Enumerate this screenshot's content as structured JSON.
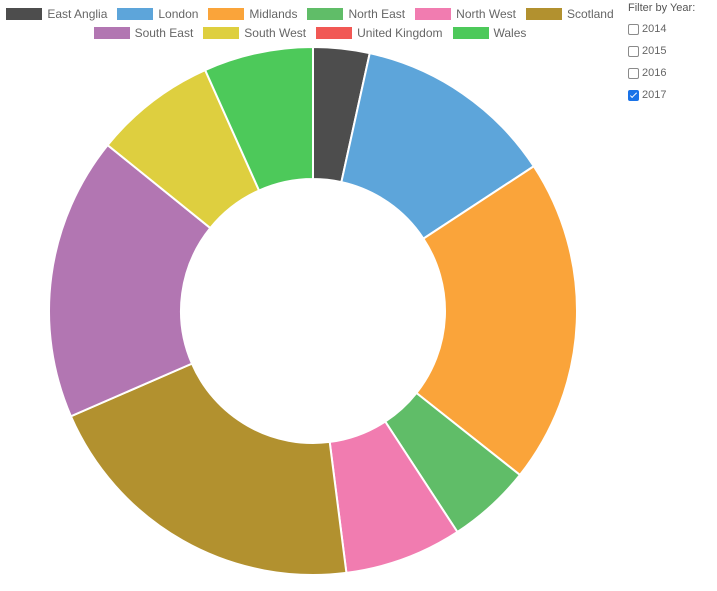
{
  "chart_data": {
    "type": "pie",
    "variant": "doughnut",
    "categories": [
      "East Anglia",
      "London",
      "Midlands",
      "North East",
      "North West",
      "Scotland",
      "South East",
      "South West",
      "United Kingdom",
      "Wales"
    ],
    "values": [
      3.5,
      12.5,
      20.2,
      5.2,
      7.3,
      20.8,
      17.6,
      7.6,
      0,
      6.8
    ],
    "colors": [
      "#4d4d4d",
      "#5da5da",
      "#faa43a",
      "#60bd68",
      "#f17cb0",
      "#b2912f",
      "#b276b2",
      "#decf3f",
      "#f15854",
      "#4dc95a"
    ],
    "legend_position": "top"
  },
  "filter": {
    "title": "Filter by Year:",
    "options": [
      {
        "label": "2014",
        "checked": false
      },
      {
        "label": "2015",
        "checked": false
      },
      {
        "label": "2016",
        "checked": false
      },
      {
        "label": "2017",
        "checked": true
      }
    ]
  }
}
